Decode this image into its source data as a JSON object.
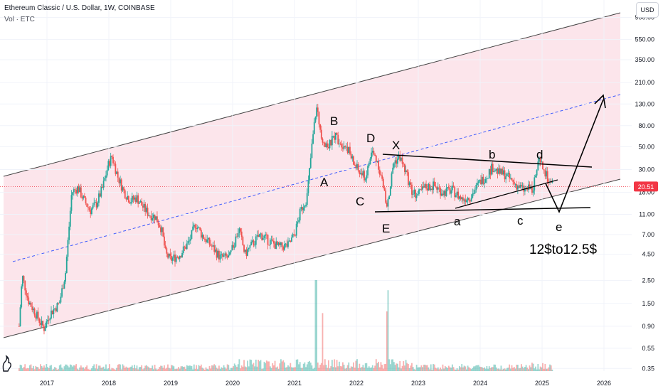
{
  "header": {
    "symbol_line": "Ethereum Classic / U.S. Dollar, 1W, COINBASE",
    "vol_line": "Vol · ETC"
  },
  "currency_button": "USD",
  "colors": {
    "up": "#26a69a",
    "down": "#ef5350",
    "channel_fill": "#fbe0e7",
    "channel_line": "#444444",
    "midline": "#3d5afe",
    "price_tag": "#f23645"
  },
  "chart_data": {
    "type": "candlestick",
    "title": "Ethereum Classic / U.S. Dollar, 1W, COINBASE",
    "y_scale": "log",
    "ylim": [
      0.33,
      1100
    ],
    "y_ticks": [
      "0.35",
      "0.55",
      "0.90",
      "1.50",
      "2.50",
      "4.50",
      "7.00",
      "11.00",
      "18.00",
      "30.00",
      "50.00",
      "80.00",
      "130.00",
      "210.00",
      "350.00",
      "550.00",
      "900.00"
    ],
    "x_ticks": [
      "2017",
      "2018",
      "2019",
      "2020",
      "2021",
      "2022",
      "2023",
      "2024",
      "2025",
      "2026"
    ],
    "xlim": [
      2016.5,
      2026.3
    ],
    "last_price": "20.51",
    "price_path": [
      [
        2016.55,
        0.9
      ],
      [
        2016.6,
        2.8
      ],
      [
        2016.7,
        1.6
      ],
      [
        2016.85,
        1.1
      ],
      [
        2016.95,
        0.85
      ],
      [
        2017.05,
        1.2
      ],
      [
        2017.2,
        1.5
      ],
      [
        2017.3,
        3.0
      ],
      [
        2017.4,
        18.0
      ],
      [
        2017.5,
        20.0
      ],
      [
        2017.6,
        15.0
      ],
      [
        2017.7,
        12.0
      ],
      [
        2017.8,
        14.0
      ],
      [
        2017.9,
        20.0
      ],
      [
        2018.0,
        35.0
      ],
      [
        2018.05,
        40.0
      ],
      [
        2018.15,
        25.0
      ],
      [
        2018.25,
        18.0
      ],
      [
        2018.35,
        15.0
      ],
      [
        2018.45,
        16.0
      ],
      [
        2018.55,
        13.0
      ],
      [
        2018.65,
        11.0
      ],
      [
        2018.75,
        10.5
      ],
      [
        2018.85,
        8.0
      ],
      [
        2018.92,
        4.5
      ],
      [
        2019.0,
        4.0
      ],
      [
        2019.15,
        4.5
      ],
      [
        2019.3,
        6.0
      ],
      [
        2019.4,
        9.0
      ],
      [
        2019.5,
        7.0
      ],
      [
        2019.65,
        5.5
      ],
      [
        2019.8,
        4.2
      ],
      [
        2019.95,
        4.2
      ],
      [
        2020.1,
        8.0
      ],
      [
        2020.2,
        4.5
      ],
      [
        2020.3,
        5.5
      ],
      [
        2020.45,
        7.0
      ],
      [
        2020.6,
        6.0
      ],
      [
        2020.75,
        5.3
      ],
      [
        2020.9,
        5.5
      ],
      [
        2021.0,
        7.0
      ],
      [
        2021.1,
        12.0
      ],
      [
        2021.2,
        16.0
      ],
      [
        2021.28,
        50.0
      ],
      [
        2021.35,
        120.0
      ],
      [
        2021.45,
        60.0
      ],
      [
        2021.55,
        50.0
      ],
      [
        2021.65,
        65.0
      ],
      [
        2021.75,
        55.0
      ],
      [
        2021.85,
        50.0
      ],
      [
        2021.95,
        35.0
      ],
      [
        2022.05,
        28.0
      ],
      [
        2022.15,
        25.0
      ],
      [
        2022.25,
        45.0
      ],
      [
        2022.35,
        35.0
      ],
      [
        2022.45,
        18.0
      ],
      [
        2022.5,
        13.0
      ],
      [
        2022.6,
        35.0
      ],
      [
        2022.7,
        40.0
      ],
      [
        2022.8,
        28.0
      ],
      [
        2022.9,
        18.0
      ],
      [
        2023.0,
        17.0
      ],
      [
        2023.1,
        20.0
      ],
      [
        2023.25,
        21.0
      ],
      [
        2023.4,
        18.0
      ],
      [
        2023.55,
        19.0
      ],
      [
        2023.7,
        15.5
      ],
      [
        2023.85,
        16.5
      ],
      [
        2024.0,
        23.0
      ],
      [
        2024.1,
        26.0
      ],
      [
        2024.2,
        32.0
      ],
      [
        2024.3,
        28.0
      ],
      [
        2024.4,
        27.0
      ],
      [
        2024.55,
        22.0
      ],
      [
        2024.7,
        19.0
      ],
      [
        2024.85,
        20.0
      ],
      [
        2024.95,
        36.0
      ],
      [
        2025.05,
        28.0
      ],
      [
        2025.12,
        22.0
      ],
      [
        2025.18,
        20.51
      ]
    ],
    "volume_spike_years": [
      2021.35,
      2021.45,
      2022.5
    ],
    "annotations": {
      "A": "A",
      "B": "B",
      "C": "C",
      "D": "D",
      "E": "E",
      "X": "X",
      "a": "a",
      "b": "b",
      "c": "c",
      "d": "d",
      "e": "e",
      "target": "12$to12.5$"
    }
  }
}
